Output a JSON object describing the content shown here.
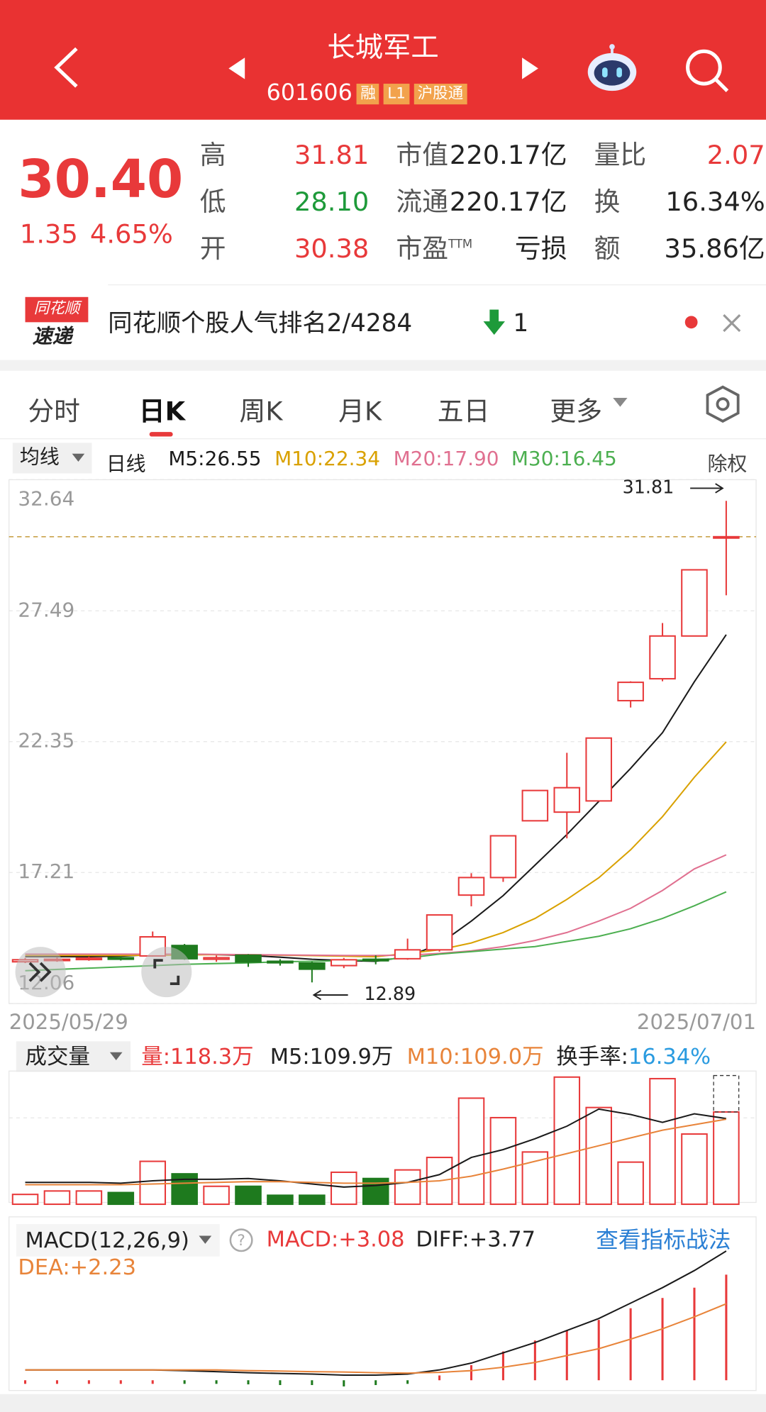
{
  "header": {
    "title": "长城军工",
    "code": "601606",
    "tags": [
      "融",
      "L1",
      "沪股通"
    ]
  },
  "quote": {
    "price": "30.40",
    "change": "1.35",
    "change_pct": "4.65%",
    "fields": [
      {
        "label": "高",
        "value": "31.81",
        "color": "#e8393a"
      },
      {
        "label": "市值",
        "value": "220.17亿",
        "color": "#222222"
      },
      {
        "label": "量比",
        "value": "2.07",
        "color": "#e8393a"
      },
      {
        "label": "低",
        "value": "28.10",
        "color": "#1e9a3a"
      },
      {
        "label": "流通",
        "value": "220.17亿",
        "color": "#222222"
      },
      {
        "label": "换",
        "value": "16.34%",
        "color": "#222222"
      },
      {
        "label": "开",
        "value": "30.38",
        "color": "#e8393a"
      },
      {
        "label": "市盈",
        "sup": "TTM",
        "value": "亏损",
        "color": "#222222"
      },
      {
        "label": "额",
        "value": "35.86亿",
        "color": "#222222"
      }
    ]
  },
  "ranking": {
    "badge_top": "同花顺",
    "badge_bottom": "速递",
    "text": "同花顺个股人气排名2/4284",
    "change": "1"
  },
  "tabs": [
    "分时",
    "日K",
    "周K",
    "月K",
    "五日",
    "更多"
  ],
  "chart_data": [
    {
      "type": "candlestick",
      "indicator": "均线",
      "period": "日线",
      "adjust": "除权",
      "ma_legend": [
        "M5:26.55",
        "M10:22.34",
        "M20:17.90",
        "M30:16.45"
      ],
      "x_labels": [
        "2025/05/29",
        "2025/07/01"
      ],
      "ylim": [
        12.06,
        32.64
      ],
      "yticks": [
        32.64,
        27.49,
        22.35,
        17.21,
        12.06
      ],
      "grid": true,
      "up_color": "#e8393a",
      "down_color": "#1e7a1e",
      "open": [
        13.7,
        13.76,
        13.8,
        13.86,
        13.93,
        14.34,
        13.8,
        13.96,
        13.72,
        13.65,
        13.55,
        13.8,
        13.82,
        14.17,
        16.32,
        17.01,
        19.24,
        19.58,
        20.02,
        23.96,
        24.82,
        26.5,
        30.38
      ],
      "high": [
        13.85,
        13.86,
        13.9,
        13.92,
        14.89,
        14.4,
        13.95,
        14.0,
        13.8,
        13.7,
        13.85,
        13.95,
        14.61,
        15.54,
        17.18,
        18.65,
        20.43,
        21.91,
        22.49,
        24.72,
        27.01,
        29.1,
        31.81
      ],
      "low": [
        13.65,
        13.7,
        13.74,
        13.75,
        13.9,
        13.78,
        13.7,
        13.5,
        13.55,
        12.89,
        13.45,
        13.6,
        13.78,
        14.1,
        15.88,
        16.84,
        19.24,
        18.55,
        20.0,
        23.69,
        24.72,
        26.5,
        28.1
      ],
      "close": [
        13.78,
        13.8,
        13.84,
        13.8,
        14.68,
        13.82,
        13.86,
        13.69,
        13.66,
        13.41,
        13.78,
        13.74,
        14.17,
        15.54,
        17.01,
        18.65,
        20.43,
        20.54,
        22.49,
        24.68,
        26.5,
        29.1,
        30.4
      ],
      "series": [
        {
          "color": "#1a1a1a",
          "values": [
            13.9,
            13.9,
            13.9,
            13.92,
            13.98,
            14.0,
            13.98,
            13.95,
            13.88,
            13.8,
            13.75,
            13.72,
            13.9,
            14.4,
            15.3,
            16.3,
            17.5,
            18.7,
            20.0,
            21.3,
            22.7,
            24.7,
            26.55
          ]
        },
        {
          "color": "#d9a100",
          "values": [
            13.95,
            13.95,
            13.95,
            13.95,
            13.96,
            13.97,
            13.98,
            13.98,
            13.96,
            13.94,
            13.92,
            13.9,
            14.03,
            14.17,
            14.44,
            14.85,
            15.4,
            16.15,
            17.0,
            18.1,
            19.4,
            20.95,
            22.34
          ]
        },
        {
          "color": "#e07090",
          "values": [
            14.0,
            14.0,
            14.0,
            14.0,
            14.0,
            14.0,
            13.99,
            13.98,
            13.97,
            13.96,
            13.95,
            13.95,
            13.96,
            14.03,
            14.13,
            14.3,
            14.54,
            14.85,
            15.3,
            15.8,
            16.5,
            17.35,
            17.9
          ]
        },
        {
          "color": "#4caf50",
          "values": [
            13.35,
            13.4,
            13.45,
            13.5,
            13.55,
            13.6,
            13.63,
            13.66,
            13.7,
            13.72,
            13.75,
            13.78,
            13.85,
            14.0,
            14.1,
            14.2,
            14.3,
            14.5,
            14.7,
            15.0,
            15.4,
            15.9,
            16.45
          ]
        }
      ]
    },
    {
      "type": "bar",
      "title": "成交量",
      "legend": [
        "量:118.3万",
        "M5:109.9万",
        "M10:109.0万"
      ],
      "turnover_label": "换手率:",
      "turnover": "16.34%",
      "ylim": [
        0,
        165
      ],
      "values": [
        12.6,
        17,
        17,
        15,
        55,
        39,
        23,
        23,
        11.5,
        11.5,
        41,
        33,
        44,
        60,
        136,
        111,
        67,
        163,
        124,
        54,
        161,
        90,
        118.3
      ],
      "series": [
        {
          "color": "#1a1a1a",
          "values": [
            28,
            28,
            28,
            27,
            30,
            32,
            32,
            33,
            30,
            26,
            22,
            24,
            28,
            38,
            60,
            70,
            84,
            100,
            122,
            115,
            105,
            116,
            109.9
          ]
        },
        {
          "color": "#e8843a",
          "values": [
            25,
            25,
            25,
            25,
            26,
            27,
            28,
            29,
            29,
            28,
            27,
            27,
            28,
            30,
            36,
            45,
            55,
            65,
            75,
            85,
            95,
            102,
            109.0
          ]
        }
      ]
    },
    {
      "type": "macd",
      "title": "MACD(12,26,9)",
      "legend": [
        "MACD:+3.08",
        "DIFF:+3.77",
        "DEA:+2.23"
      ],
      "link": "查看指标战法",
      "ylim": [
        -0.3,
        3.9
      ],
      "up_color": "#e8393a",
      "down_color": "#1e7a1e",
      "values": [
        0,
        0,
        0,
        0,
        0,
        -0.04,
        -0.1,
        -0.12,
        -0.14,
        -0.14,
        -0.18,
        -0.14,
        -0.06,
        0.14,
        0.44,
        0.84,
        1.16,
        1.46,
        1.76,
        2.1,
        2.4,
        2.7,
        3.08
      ],
      "series": [
        {
          "color": "#1a1a1a",
          "values": [
            0.3,
            0.3,
            0.3,
            0.3,
            0.3,
            0.28,
            0.25,
            0.22,
            0.2,
            0.18,
            0.15,
            0.15,
            0.18,
            0.3,
            0.5,
            0.8,
            1.1,
            1.45,
            1.8,
            2.25,
            2.7,
            3.2,
            3.77
          ]
        },
        {
          "color": "#e8843a",
          "values": [
            0.3,
            0.3,
            0.3,
            0.3,
            0.3,
            0.3,
            0.3,
            0.28,
            0.27,
            0.25,
            0.24,
            0.22,
            0.21,
            0.23,
            0.28,
            0.38,
            0.52,
            0.72,
            0.92,
            1.2,
            1.5,
            1.85,
            2.23
          ]
        }
      ]
    }
  ]
}
